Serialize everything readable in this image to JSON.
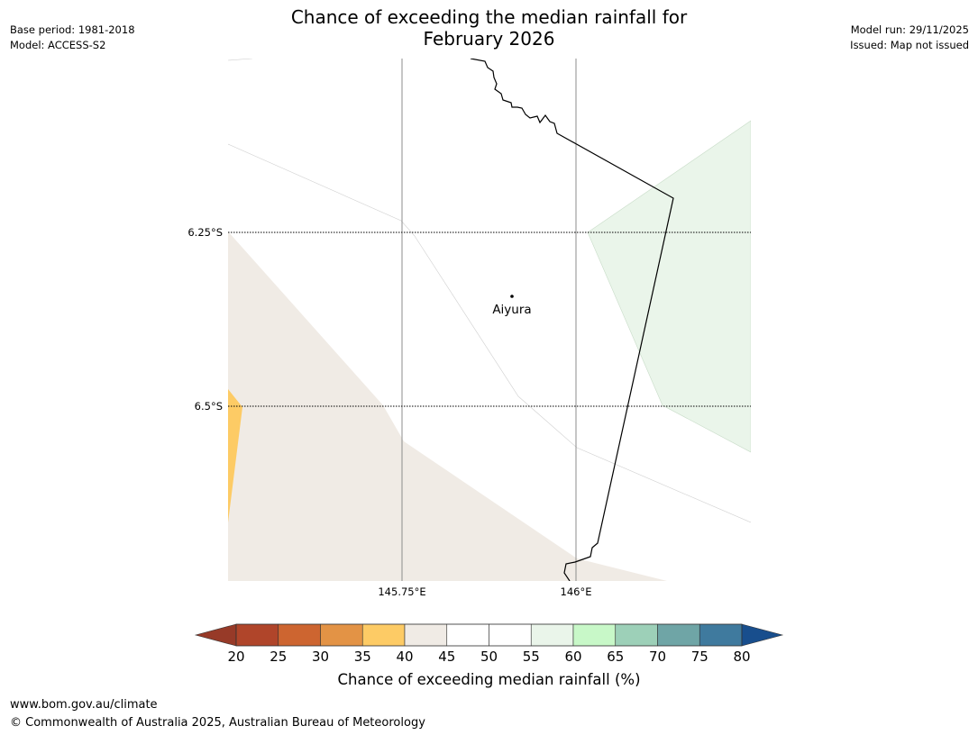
{
  "header": {
    "base_period": "Base period: 1981-2018",
    "model": "Model: ACCESS-S2",
    "title_line1": "Chance of exceeding the median rainfall for",
    "title_line2": "February 2026",
    "model_run": "Model run: 29/11/2025",
    "issued": "Issued: Map not issued"
  },
  "map": {
    "lon_labels": [
      "145.75°E",
      "146°E"
    ],
    "lat_labels": [
      "6.25°S",
      "6.5°S"
    ],
    "place": "Aiyura"
  },
  "legend": {
    "ticks": [
      "20",
      "25",
      "30",
      "35",
      "40",
      "45",
      "50",
      "55",
      "60",
      "65",
      "70",
      "75",
      "80"
    ],
    "colors": [
      "#b0452a",
      "#cd6530",
      "#e39345",
      "#fdcb65",
      "#f0ebe5",
      "#ffffff",
      "#ffffff",
      "#eaf5ea",
      "#c8f8c8",
      "#9dd0b8",
      "#6fa5a6",
      "#3f7a9e"
    ],
    "low_extend_color": "#973a28",
    "high_extend_color": "#184e8d",
    "label": "Chance of exceeding median rainfall (%)"
  },
  "footer": {
    "url": "www.bom.gov.au/climate",
    "copyright": "© Commonwealth of Australia 2025, Australian Bureau of Meteorology"
  }
}
